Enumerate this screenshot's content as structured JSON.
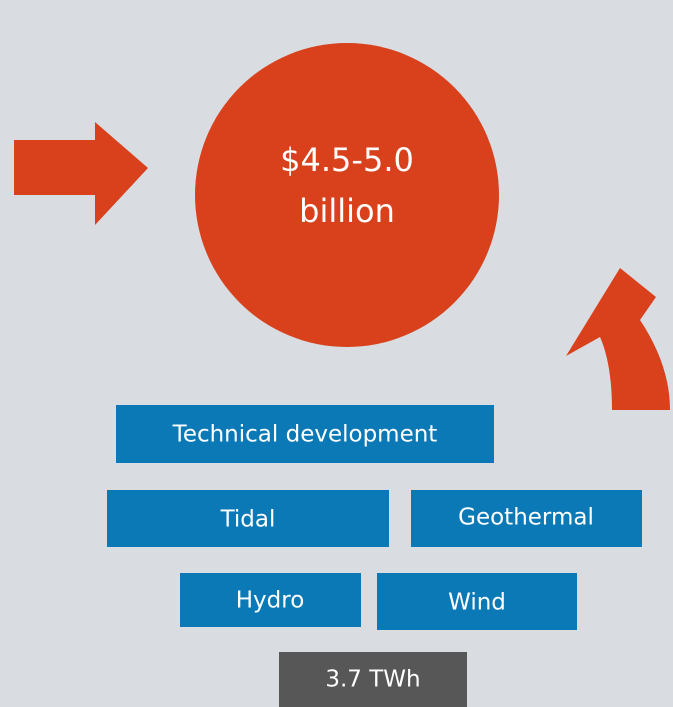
{
  "center": {
    "line1": "$4.5-5.0",
    "line2": "billion"
  },
  "boxes": [
    "Technical development",
    "Tidal",
    "Geothermal",
    "Hydro",
    "Wind"
  ],
  "footer": "3.7 TWh"
}
